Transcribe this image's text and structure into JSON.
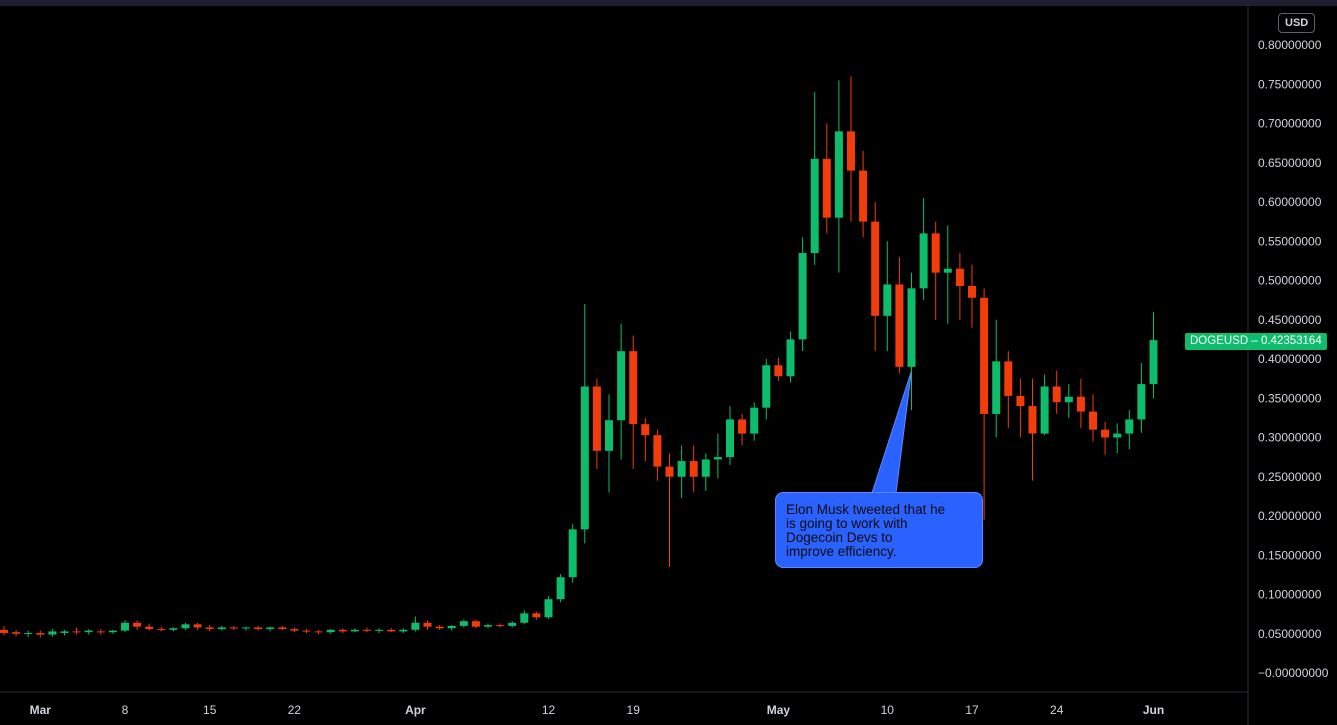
{
  "chart_data": {
    "type": "candlestick",
    "symbol": "DOGEUSD",
    "currency_label": "USD",
    "last_price": "0.42353164",
    "ylim": [
      -0.03,
      0.82
    ],
    "y_ticks": [
      "0.80000000",
      "0.75000000",
      "0.70000000",
      "0.65000000",
      "0.60000000",
      "0.55000000",
      "0.50000000",
      "0.45000000",
      "0.40000000",
      "0.35000000",
      "0.30000000",
      "0.25000000",
      "0.20000000",
      "0.15000000",
      "0.10000000",
      "0.05000000",
      "−0.00000000"
    ],
    "y_tick_values": [
      0.8,
      0.75,
      0.7,
      0.65,
      0.6,
      0.55,
      0.5,
      0.45,
      0.4,
      0.35,
      0.3,
      0.25,
      0.2,
      0.15,
      0.1,
      0.05,
      0.0
    ],
    "x_ticks": [
      {
        "label": "Mar",
        "index": 3,
        "bold": true
      },
      {
        "label": "8",
        "index": 10,
        "bold": false
      },
      {
        "label": "15",
        "index": 17,
        "bold": false
      },
      {
        "label": "22",
        "index": 24,
        "bold": false
      },
      {
        "label": "Apr",
        "index": 34,
        "bold": true
      },
      {
        "label": "12",
        "index": 45,
        "bold": false
      },
      {
        "label": "19",
        "index": 52,
        "bold": false
      },
      {
        "label": "May",
        "index": 64,
        "bold": true
      },
      {
        "label": "10",
        "index": 73,
        "bold": false
      },
      {
        "label": "17",
        "index": 80,
        "bold": false
      },
      {
        "label": "24",
        "index": 87,
        "bold": false
      },
      {
        "label": "Jun",
        "index": 95,
        "bold": true
      }
    ],
    "colors": {
      "up": "#0ebd6b",
      "down": "#f23c0a",
      "callout": "#2962ff",
      "text": "#d1d4dc"
    },
    "candles": [
      {
        "o": 0.055,
        "h": 0.06,
        "l": 0.048,
        "c": 0.051
      },
      {
        "o": 0.052,
        "h": 0.055,
        "l": 0.047,
        "c": 0.05
      },
      {
        "o": 0.05,
        "h": 0.054,
        "l": 0.046,
        "c": 0.051
      },
      {
        "o": 0.051,
        "h": 0.054,
        "l": 0.045,
        "c": 0.049
      },
      {
        "o": 0.049,
        "h": 0.056,
        "l": 0.046,
        "c": 0.053
      },
      {
        "o": 0.051,
        "h": 0.055,
        "l": 0.048,
        "c": 0.053
      },
      {
        "o": 0.053,
        "h": 0.058,
        "l": 0.049,
        "c": 0.052
      },
      {
        "o": 0.052,
        "h": 0.056,
        "l": 0.049,
        "c": 0.054
      },
      {
        "o": 0.053,
        "h": 0.056,
        "l": 0.049,
        "c": 0.052
      },
      {
        "o": 0.052,
        "h": 0.055,
        "l": 0.05,
        "c": 0.054
      },
      {
        "o": 0.054,
        "h": 0.067,
        "l": 0.052,
        "c": 0.064
      },
      {
        "o": 0.064,
        "h": 0.067,
        "l": 0.055,
        "c": 0.059
      },
      {
        "o": 0.059,
        "h": 0.063,
        "l": 0.054,
        "c": 0.056
      },
      {
        "o": 0.056,
        "h": 0.059,
        "l": 0.053,
        "c": 0.055
      },
      {
        "o": 0.055,
        "h": 0.058,
        "l": 0.053,
        "c": 0.057
      },
      {
        "o": 0.057,
        "h": 0.064,
        "l": 0.055,
        "c": 0.062
      },
      {
        "o": 0.062,
        "h": 0.064,
        "l": 0.055,
        "c": 0.058
      },
      {
        "o": 0.058,
        "h": 0.061,
        "l": 0.053,
        "c": 0.056
      },
      {
        "o": 0.056,
        "h": 0.06,
        "l": 0.054,
        "c": 0.058
      },
      {
        "o": 0.058,
        "h": 0.06,
        "l": 0.055,
        "c": 0.057
      },
      {
        "o": 0.057,
        "h": 0.059,
        "l": 0.054,
        "c": 0.058
      },
      {
        "o": 0.058,
        "h": 0.06,
        "l": 0.054,
        "c": 0.056
      },
      {
        "o": 0.056,
        "h": 0.059,
        "l": 0.053,
        "c": 0.058
      },
      {
        "o": 0.058,
        "h": 0.06,
        "l": 0.055,
        "c": 0.056
      },
      {
        "o": 0.056,
        "h": 0.058,
        "l": 0.052,
        "c": 0.054
      },
      {
        "o": 0.054,
        "h": 0.056,
        "l": 0.051,
        "c": 0.053
      },
      {
        "o": 0.053,
        "h": 0.055,
        "l": 0.049,
        "c": 0.052
      },
      {
        "o": 0.052,
        "h": 0.056,
        "l": 0.05,
        "c": 0.055
      },
      {
        "o": 0.055,
        "h": 0.057,
        "l": 0.051,
        "c": 0.053
      },
      {
        "o": 0.053,
        "h": 0.057,
        "l": 0.052,
        "c": 0.055
      },
      {
        "o": 0.055,
        "h": 0.058,
        "l": 0.052,
        "c": 0.054
      },
      {
        "o": 0.054,
        "h": 0.057,
        "l": 0.051,
        "c": 0.055
      },
      {
        "o": 0.055,
        "h": 0.057,
        "l": 0.052,
        "c": 0.053
      },
      {
        "o": 0.053,
        "h": 0.057,
        "l": 0.051,
        "c": 0.055
      },
      {
        "o": 0.055,
        "h": 0.072,
        "l": 0.053,
        "c": 0.064
      },
      {
        "o": 0.064,
        "h": 0.067,
        "l": 0.055,
        "c": 0.059
      },
      {
        "o": 0.059,
        "h": 0.061,
        "l": 0.055,
        "c": 0.057
      },
      {
        "o": 0.057,
        "h": 0.061,
        "l": 0.054,
        "c": 0.06
      },
      {
        "o": 0.06,
        "h": 0.068,
        "l": 0.058,
        "c": 0.066
      },
      {
        "o": 0.066,
        "h": 0.068,
        "l": 0.057,
        "c": 0.059
      },
      {
        "o": 0.059,
        "h": 0.063,
        "l": 0.057,
        "c": 0.061
      },
      {
        "o": 0.061,
        "h": 0.063,
        "l": 0.058,
        "c": 0.06
      },
      {
        "o": 0.06,
        "h": 0.066,
        "l": 0.058,
        "c": 0.064
      },
      {
        "o": 0.064,
        "h": 0.08,
        "l": 0.062,
        "c": 0.076
      },
      {
        "o": 0.076,
        "h": 0.078,
        "l": 0.068,
        "c": 0.071
      },
      {
        "o": 0.071,
        "h": 0.098,
        "l": 0.069,
        "c": 0.094
      },
      {
        "o": 0.094,
        "h": 0.126,
        "l": 0.09,
        "c": 0.122
      },
      {
        "o": 0.122,
        "h": 0.19,
        "l": 0.115,
        "c": 0.183
      },
      {
        "o": 0.183,
        "h": 0.47,
        "l": 0.165,
        "c": 0.365
      },
      {
        "o": 0.365,
        "h": 0.375,
        "l": 0.26,
        "c": 0.283
      },
      {
        "o": 0.283,
        "h": 0.355,
        "l": 0.23,
        "c": 0.322
      },
      {
        "o": 0.322,
        "h": 0.445,
        "l": 0.272,
        "c": 0.41
      },
      {
        "o": 0.41,
        "h": 0.43,
        "l": 0.26,
        "c": 0.317
      },
      {
        "o": 0.317,
        "h": 0.325,
        "l": 0.27,
        "c": 0.303
      },
      {
        "o": 0.303,
        "h": 0.31,
        "l": 0.245,
        "c": 0.263
      },
      {
        "o": 0.263,
        "h": 0.28,
        "l": 0.135,
        "c": 0.25
      },
      {
        "o": 0.25,
        "h": 0.29,
        "l": 0.223,
        "c": 0.27
      },
      {
        "o": 0.27,
        "h": 0.29,
        "l": 0.23,
        "c": 0.25
      },
      {
        "o": 0.25,
        "h": 0.28,
        "l": 0.232,
        "c": 0.272
      },
      {
        "o": 0.272,
        "h": 0.305,
        "l": 0.248,
        "c": 0.275
      },
      {
        "o": 0.275,
        "h": 0.34,
        "l": 0.265,
        "c": 0.323
      },
      {
        "o": 0.323,
        "h": 0.33,
        "l": 0.29,
        "c": 0.305
      },
      {
        "o": 0.305,
        "h": 0.345,
        "l": 0.296,
        "c": 0.338
      },
      {
        "o": 0.338,
        "h": 0.4,
        "l": 0.323,
        "c": 0.392
      },
      {
        "o": 0.392,
        "h": 0.402,
        "l": 0.372,
        "c": 0.378
      },
      {
        "o": 0.378,
        "h": 0.435,
        "l": 0.37,
        "c": 0.425
      },
      {
        "o": 0.425,
        "h": 0.555,
        "l": 0.41,
        "c": 0.535
      },
      {
        "o": 0.535,
        "h": 0.74,
        "l": 0.52,
        "c": 0.655
      },
      {
        "o": 0.655,
        "h": 0.7,
        "l": 0.56,
        "c": 0.58
      },
      {
        "o": 0.58,
        "h": 0.755,
        "l": 0.51,
        "c": 0.69
      },
      {
        "o": 0.69,
        "h": 0.76,
        "l": 0.575,
        "c": 0.64
      },
      {
        "o": 0.64,
        "h": 0.665,
        "l": 0.555,
        "c": 0.575
      },
      {
        "o": 0.575,
        "h": 0.6,
        "l": 0.41,
        "c": 0.455
      },
      {
        "o": 0.455,
        "h": 0.55,
        "l": 0.41,
        "c": 0.495
      },
      {
        "o": 0.495,
        "h": 0.53,
        "l": 0.382,
        "c": 0.39
      },
      {
        "o": 0.39,
        "h": 0.51,
        "l": 0.335,
        "c": 0.49
      },
      {
        "o": 0.49,
        "h": 0.605,
        "l": 0.475,
        "c": 0.56
      },
      {
        "o": 0.56,
        "h": 0.575,
        "l": 0.45,
        "c": 0.51
      },
      {
        "o": 0.51,
        "h": 0.57,
        "l": 0.445,
        "c": 0.515
      },
      {
        "o": 0.515,
        "h": 0.535,
        "l": 0.45,
        "c": 0.493
      },
      {
        "o": 0.493,
        "h": 0.52,
        "l": 0.44,
        "c": 0.478
      },
      {
        "o": 0.478,
        "h": 0.49,
        "l": 0.195,
        "c": 0.33
      },
      {
        "o": 0.33,
        "h": 0.45,
        "l": 0.3,
        "c": 0.397
      },
      {
        "o": 0.397,
        "h": 0.41,
        "l": 0.312,
        "c": 0.353
      },
      {
        "o": 0.353,
        "h": 0.375,
        "l": 0.3,
        "c": 0.34
      },
      {
        "o": 0.34,
        "h": 0.375,
        "l": 0.245,
        "c": 0.305
      },
      {
        "o": 0.305,
        "h": 0.38,
        "l": 0.303,
        "c": 0.365
      },
      {
        "o": 0.365,
        "h": 0.385,
        "l": 0.33,
        "c": 0.345
      },
      {
        "o": 0.345,
        "h": 0.368,
        "l": 0.325,
        "c": 0.352
      },
      {
        "o": 0.352,
        "h": 0.375,
        "l": 0.312,
        "c": 0.333
      },
      {
        "o": 0.333,
        "h": 0.355,
        "l": 0.295,
        "c": 0.31
      },
      {
        "o": 0.31,
        "h": 0.32,
        "l": 0.278,
        "c": 0.3
      },
      {
        "o": 0.3,
        "h": 0.318,
        "l": 0.28,
        "c": 0.305
      },
      {
        "o": 0.305,
        "h": 0.335,
        "l": 0.285,
        "c": 0.323
      },
      {
        "o": 0.323,
        "h": 0.395,
        "l": 0.306,
        "c": 0.368
      },
      {
        "o": 0.368,
        "h": 0.46,
        "l": 0.35,
        "c": 0.424
      }
    ]
  },
  "annotation": {
    "lines": [
      "Elon Musk tweeted that he",
      "is going to work with",
      "Dogecoin Devs to",
      "improve efficiency."
    ],
    "anchor_index": 75,
    "anchor_price": 0.385
  }
}
